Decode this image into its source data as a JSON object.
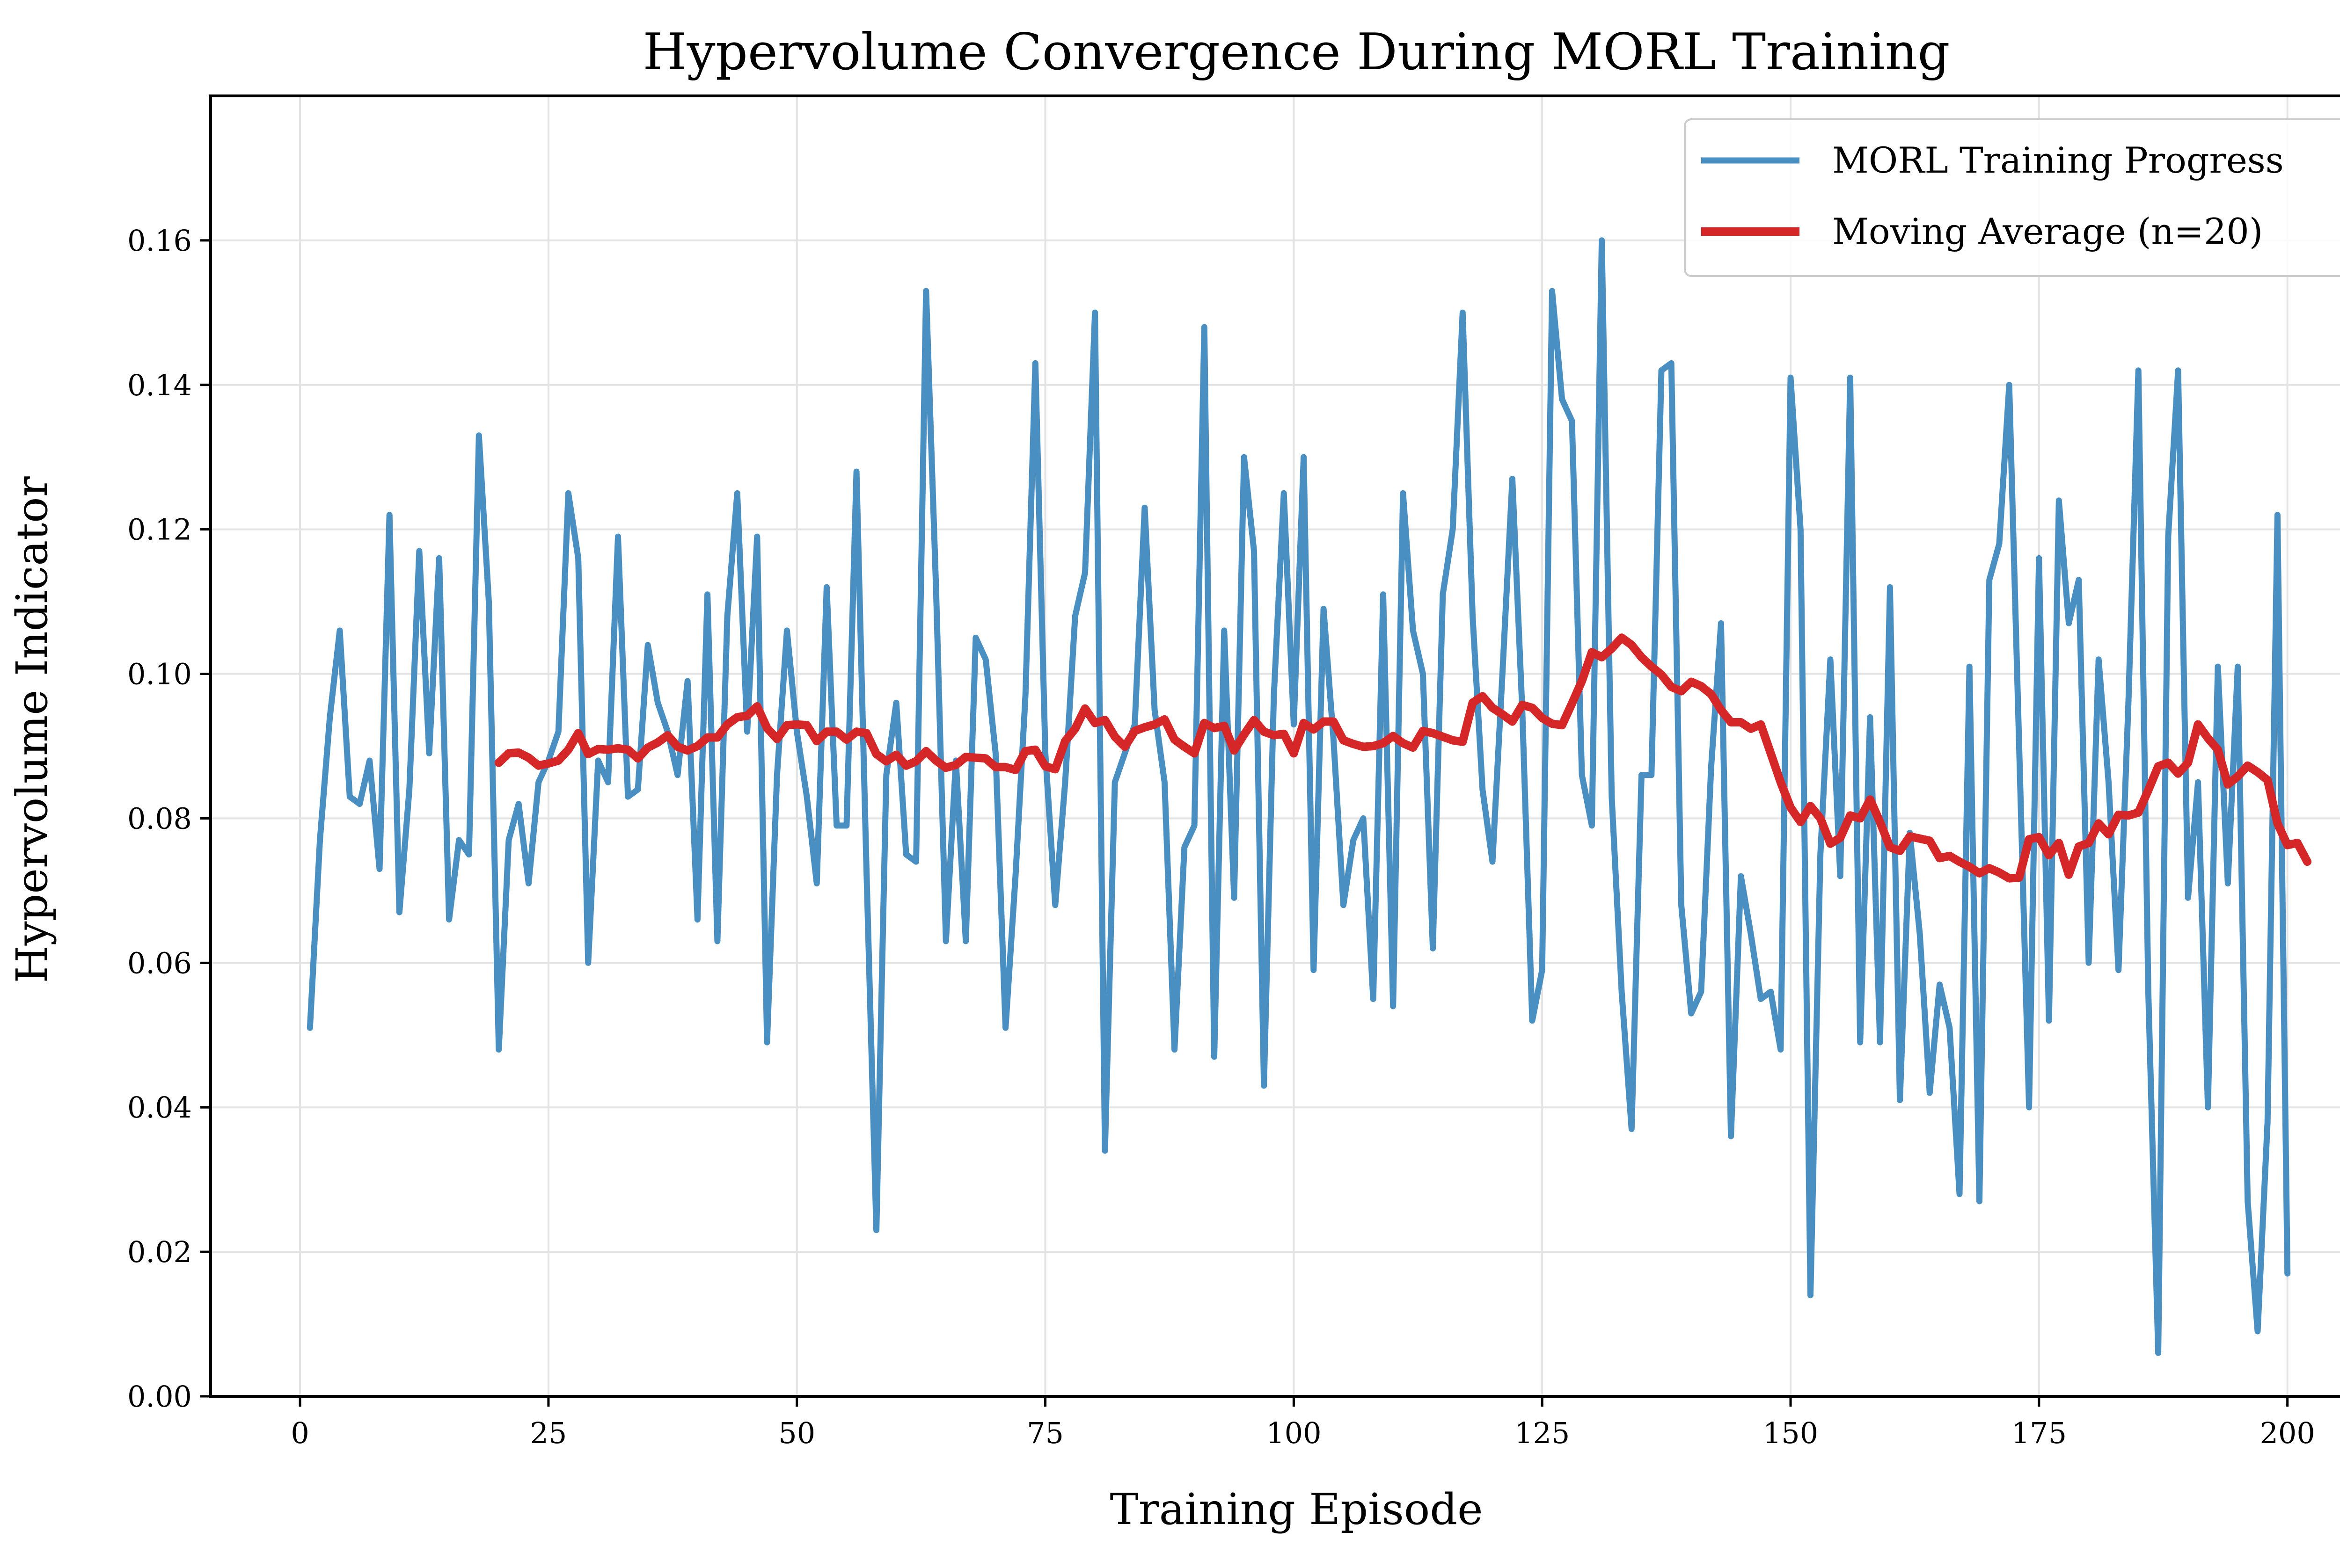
{
  "chart_data": {
    "type": "line",
    "title": "Hypervolume Convergence During MORL Training",
    "xlabel": "Training Episode",
    "ylabel": "Hypervolume Indicator",
    "xlim": [
      -9,
      210
    ],
    "ylim": [
      0.0,
      0.18
    ],
    "x_ticks": [
      0,
      25,
      50,
      75,
      100,
      125,
      150,
      175,
      200
    ],
    "y_ticks": [
      0.0,
      0.02,
      0.04,
      0.06,
      0.08,
      0.1,
      0.12,
      0.14,
      0.16
    ],
    "x_tick_labels": [
      "0",
      "25",
      "50",
      "75",
      "100",
      "125",
      "150",
      "175",
      "200"
    ],
    "y_tick_labels": [
      "0.00",
      "0.02",
      "0.04",
      "0.06",
      "0.08",
      "0.10",
      "0.12",
      "0.14",
      "0.16"
    ],
    "grid": true,
    "legend_position": "top-right",
    "series": [
      {
        "name": "MORL Training Progress",
        "color": "#4a8fc2",
        "x_start": 1,
        "values": [
          0.051,
          0.077,
          0.094,
          0.106,
          0.083,
          0.082,
          0.088,
          0.073,
          0.122,
          0.067,
          0.084,
          0.117,
          0.089,
          0.116,
          0.066,
          0.077,
          0.075,
          0.133,
          0.11,
          0.048,
          0.077,
          0.082,
          0.071,
          0.085,
          0.088,
          0.092,
          0.125,
          0.116,
          0.06,
          0.088,
          0.085,
          0.119,
          0.083,
          0.084,
          0.104,
          0.096,
          0.092,
          0.086,
          0.099,
          0.066,
          0.111,
          0.063,
          0.108,
          0.125,
          0.092,
          0.119,
          0.049,
          0.086,
          0.106,
          0.092,
          0.083,
          0.071,
          0.112,
          0.079,
          0.079,
          0.128,
          0.073,
          0.023,
          0.086,
          0.096,
          0.075,
          0.074,
          0.153,
          0.112,
          0.063,
          0.088,
          0.063,
          0.105,
          0.102,
          0.089,
          0.051,
          0.072,
          0.097,
          0.143,
          0.089,
          0.068,
          0.085,
          0.108,
          0.114,
          0.15,
          0.034,
          0.085,
          0.089,
          0.093,
          0.123,
          0.095,
          0.085,
          0.048,
          0.076,
          0.079,
          0.148,
          0.047,
          0.106,
          0.069,
          0.13,
          0.117,
          0.043,
          0.097,
          0.125,
          0.093,
          0.13,
          0.059,
          0.109,
          0.091,
          0.068,
          0.077,
          0.08,
          0.055,
          0.111,
          0.054,
          0.125,
          0.106,
          0.1,
          0.062,
          0.111,
          0.12,
          0.15,
          0.108,
          0.084,
          0.074,
          0.1,
          0.127,
          0.095,
          0.052,
          0.059,
          0.153,
          0.138,
          0.135,
          0.086,
          0.079,
          0.16,
          0.083,
          0.056,
          0.037,
          0.086,
          0.086,
          0.142,
          0.143,
          0.068,
          0.053,
          0.056,
          0.087,
          0.107,
          0.036,
          0.072,
          0.064,
          0.055,
          0.056,
          0.048,
          0.141,
          0.12,
          0.014,
          0.075,
          0.102,
          0.072,
          0.141,
          0.049,
          0.094,
          0.049,
          0.112,
          0.041,
          0.078,
          0.064,
          0.042,
          0.057,
          0.051,
          0.028,
          0.101,
          0.027,
          0.113,
          0.118,
          0.14,
          0.09,
          0.04,
          0.116,
          0.052,
          0.124,
          0.107,
          0.113,
          0.06,
          0.102,
          0.085,
          0.059,
          0.096,
          0.142,
          0.056,
          0.006,
          0.119,
          0.142,
          0.069,
          0.085,
          0.04,
          0.101,
          0.071,
          0.101,
          0.027,
          0.009,
          0.038,
          0.122,
          0.017
        ]
      },
      {
        "name": "Moving Average (n=20)",
        "color": "#d62728",
        "x_start": 20,
        "values": [
          0.0877,
          0.089,
          0.0891,
          0.0884,
          0.0873,
          0.0876,
          0.088,
          0.0895,
          0.0918,
          0.0889,
          0.0896,
          0.0895,
          0.0897,
          0.0895,
          0.0883,
          0.0898,
          0.0905,
          0.0915,
          0.0899,
          0.0894,
          0.09,
          0.0912,
          0.0912,
          0.093,
          0.094,
          0.0942,
          0.0955,
          0.0925,
          0.091,
          0.0929,
          0.093,
          0.0929,
          0.0907,
          0.092,
          0.092,
          0.0909,
          0.092,
          0.0918,
          0.0889,
          0.0879,
          0.0888,
          0.0873,
          0.0879,
          0.0893,
          0.088,
          0.087,
          0.0874,
          0.0885,
          0.0884,
          0.0883,
          0.0871,
          0.0871,
          0.0867,
          0.0893,
          0.0895,
          0.0872,
          0.0868,
          0.0907,
          0.0924,
          0.0952,
          0.0932,
          0.0936,
          0.0913,
          0.0899,
          0.0921,
          0.0926,
          0.093,
          0.0937,
          0.0909,
          0.0899,
          0.089,
          0.0932,
          0.0925,
          0.0928,
          0.0894,
          0.0916,
          0.0936,
          0.092,
          0.0915,
          0.0917,
          0.089,
          0.0932,
          0.0923,
          0.0934,
          0.0934,
          0.0908,
          0.0903,
          0.0899,
          0.09,
          0.0904,
          0.0914,
          0.0904,
          0.0898,
          0.0921,
          0.0918,
          0.0913,
          0.0908,
          0.0906,
          0.096,
          0.0969,
          0.0953,
          0.0944,
          0.0934,
          0.0957,
          0.0953,
          0.0939,
          0.0931,
          0.0929,
          0.0959,
          0.099,
          0.103,
          0.1023,
          0.1035,
          0.105,
          0.104,
          0.1023,
          0.101,
          0.0999,
          0.0982,
          0.0976,
          0.0989,
          0.0983,
          0.0972,
          0.095,
          0.0933,
          0.0933,
          0.0924,
          0.093,
          0.089,
          0.085,
          0.0815,
          0.0795,
          0.0817,
          0.08,
          0.0765,
          0.0773,
          0.0804,
          0.08,
          0.0826,
          0.0795,
          0.076,
          0.0755,
          0.0775,
          0.0772,
          0.0769,
          0.0745,
          0.0748,
          0.074,
          0.0733,
          0.0724,
          0.0731,
          0.0725,
          0.0717,
          0.0718,
          0.0771,
          0.0774,
          0.0749,
          0.0766,
          0.0722,
          0.0761,
          0.0766,
          0.0793,
          0.0778,
          0.0805,
          0.0804,
          0.0808,
          0.0839,
          0.0872,
          0.0877,
          0.0862,
          0.0877,
          0.093,
          0.0911,
          0.0895,
          0.0847,
          0.0858,
          0.0873,
          0.0864,
          0.0853,
          0.0793,
          0.0763,
          0.0766,
          0.074
        ]
      }
    ]
  }
}
